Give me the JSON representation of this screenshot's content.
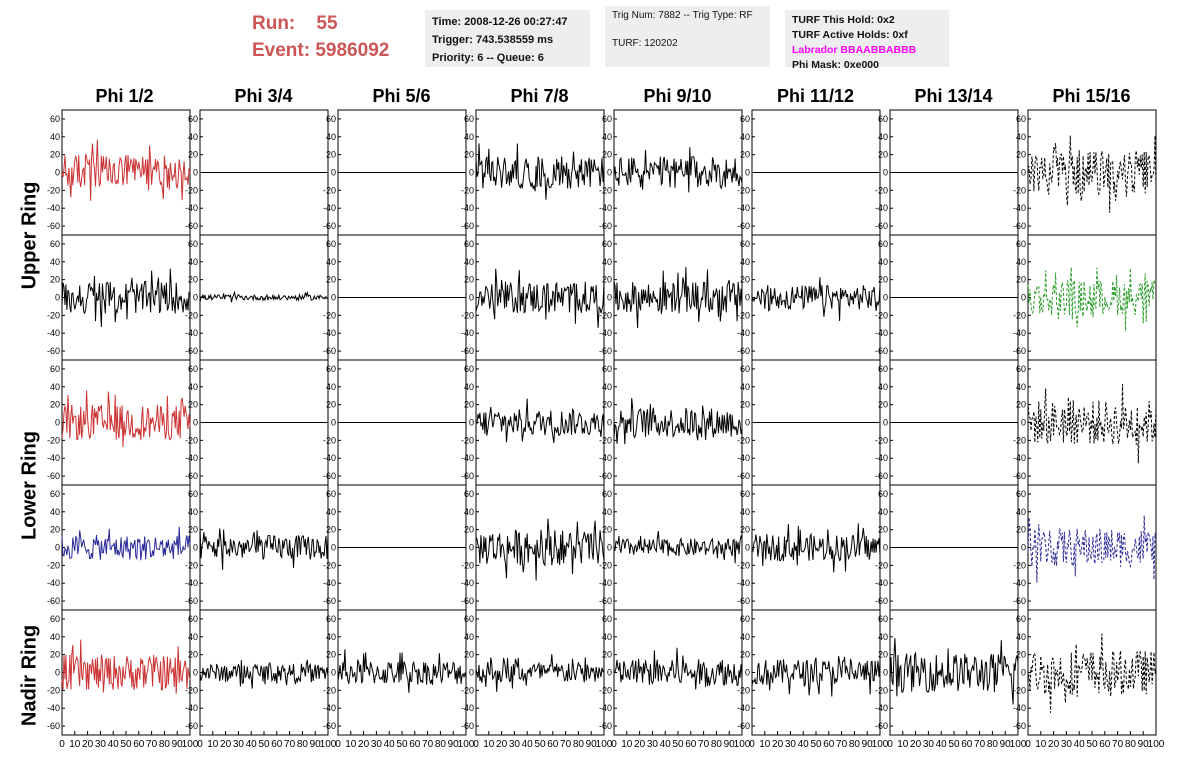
{
  "header": {
    "run_label": "Run:",
    "run_value": "55",
    "event_label": "Event:",
    "event_value": "5986092"
  },
  "time_box": {
    "time": "Time: 2008-12-26 00:27:47",
    "trigger": "Trigger: 743.538559 ms",
    "priority": "Priority: 6 -- Queue: 6"
  },
  "trig_box": {
    "trig": "Trig Num: 7882 -- Trig Type: RF",
    "turf": "TURF: 120202"
  },
  "turf_box": {
    "this_hold": "TURF This Hold: 0x2",
    "active_holds": "TURF Active Holds: 0xf",
    "labrador": "Labrador BBAABBABBB",
    "phi_mask": "Phi Mask: 0xe000"
  },
  "columns": [
    "Phi 1/2",
    "Phi 3/4",
    "Phi 5/6",
    "Phi 7/8",
    "Phi 9/10",
    "Phi 11/12",
    "Phi 13/14",
    "Phi 15/16"
  ],
  "ring_labels": [
    "Upper Ring",
    "Lower Ring",
    "Nadir Ring"
  ],
  "colors": {
    "red": "#cc3333",
    "black": "#000000",
    "green": "#2a9d2a",
    "blue": "#2a2a99",
    "run_text": "#cc5555",
    "box_bg": "#eeeeee",
    "labrador": "#ff00ff"
  },
  "chart_data": {
    "type": "line",
    "grid": false,
    "xlim": [
      0,
      100
    ],
    "ylim": [
      -70,
      70
    ],
    "x_ticks": [
      0,
      10,
      20,
      30,
      40,
      50,
      60,
      70,
      80,
      90,
      100
    ],
    "y_ticks": [
      -60,
      -40,
      -20,
      0,
      20,
      40,
      60
    ],
    "rows": [
      {
        "panels": [
          {
            "amp": 20,
            "color": "red",
            "style": "solid"
          },
          {
            "amp": 0,
            "color": "black",
            "style": "solid"
          },
          {
            "amp": 0,
            "color": "black",
            "style": "solid"
          },
          {
            "amp": 18,
            "color": "black",
            "style": "solid"
          },
          {
            "amp": 18,
            "color": "black",
            "style": "solid"
          },
          {
            "amp": 0,
            "color": "black",
            "style": "solid"
          },
          {
            "amp": 0,
            "color": "black",
            "style": "solid"
          },
          {
            "amp": 25,
            "color": "black",
            "style": "dashed"
          }
        ]
      },
      {
        "panels": [
          {
            "amp": 18,
            "color": "black",
            "style": "solid"
          },
          {
            "amp": 3,
            "color": "black",
            "style": "solid"
          },
          {
            "amp": 0,
            "color": "black",
            "style": "solid"
          },
          {
            "amp": 18,
            "color": "black",
            "style": "solid"
          },
          {
            "amp": 18,
            "color": "black",
            "style": "solid"
          },
          {
            "amp": 14,
            "color": "black",
            "style": "solid"
          },
          {
            "amp": 0,
            "color": "black",
            "style": "solid"
          },
          {
            "amp": 20,
            "color": "green",
            "style": "dashed"
          }
        ]
      },
      {
        "panels": [
          {
            "amp": 20,
            "color": "red",
            "style": "solid"
          },
          {
            "amp": 0,
            "color": "black",
            "style": "solid"
          },
          {
            "amp": 0,
            "color": "black",
            "style": "solid"
          },
          {
            "amp": 15,
            "color": "black",
            "style": "solid"
          },
          {
            "amp": 17,
            "color": "black",
            "style": "solid"
          },
          {
            "amp": 0,
            "color": "black",
            "style": "solid"
          },
          {
            "amp": 0,
            "color": "black",
            "style": "solid"
          },
          {
            "amp": 25,
            "color": "black",
            "style": "dashed"
          }
        ]
      },
      {
        "panels": [
          {
            "amp": 14,
            "color": "blue",
            "style": "solid"
          },
          {
            "amp": 14,
            "color": "black",
            "style": "solid"
          },
          {
            "amp": 0,
            "color": "black",
            "style": "solid"
          },
          {
            "amp": 20,
            "color": "black",
            "style": "solid"
          },
          {
            "amp": 10,
            "color": "black",
            "style": "solid"
          },
          {
            "amp": 15,
            "color": "black",
            "style": "solid"
          },
          {
            "amp": 0,
            "color": "black",
            "style": "solid"
          },
          {
            "amp": 22,
            "color": "blue",
            "style": "dashed"
          }
        ]
      },
      {
        "panels": [
          {
            "amp": 20,
            "color": "red",
            "style": "solid"
          },
          {
            "amp": 10,
            "color": "black",
            "style": "solid"
          },
          {
            "amp": 14,
            "color": "black",
            "style": "solid"
          },
          {
            "amp": 12,
            "color": "black",
            "style": "solid"
          },
          {
            "amp": 15,
            "color": "black",
            "style": "solid"
          },
          {
            "amp": 15,
            "color": "black",
            "style": "solid"
          },
          {
            "amp": 22,
            "color": "black",
            "style": "solid"
          },
          {
            "amp": 25,
            "color": "black",
            "style": "dashed"
          }
        ]
      }
    ]
  }
}
